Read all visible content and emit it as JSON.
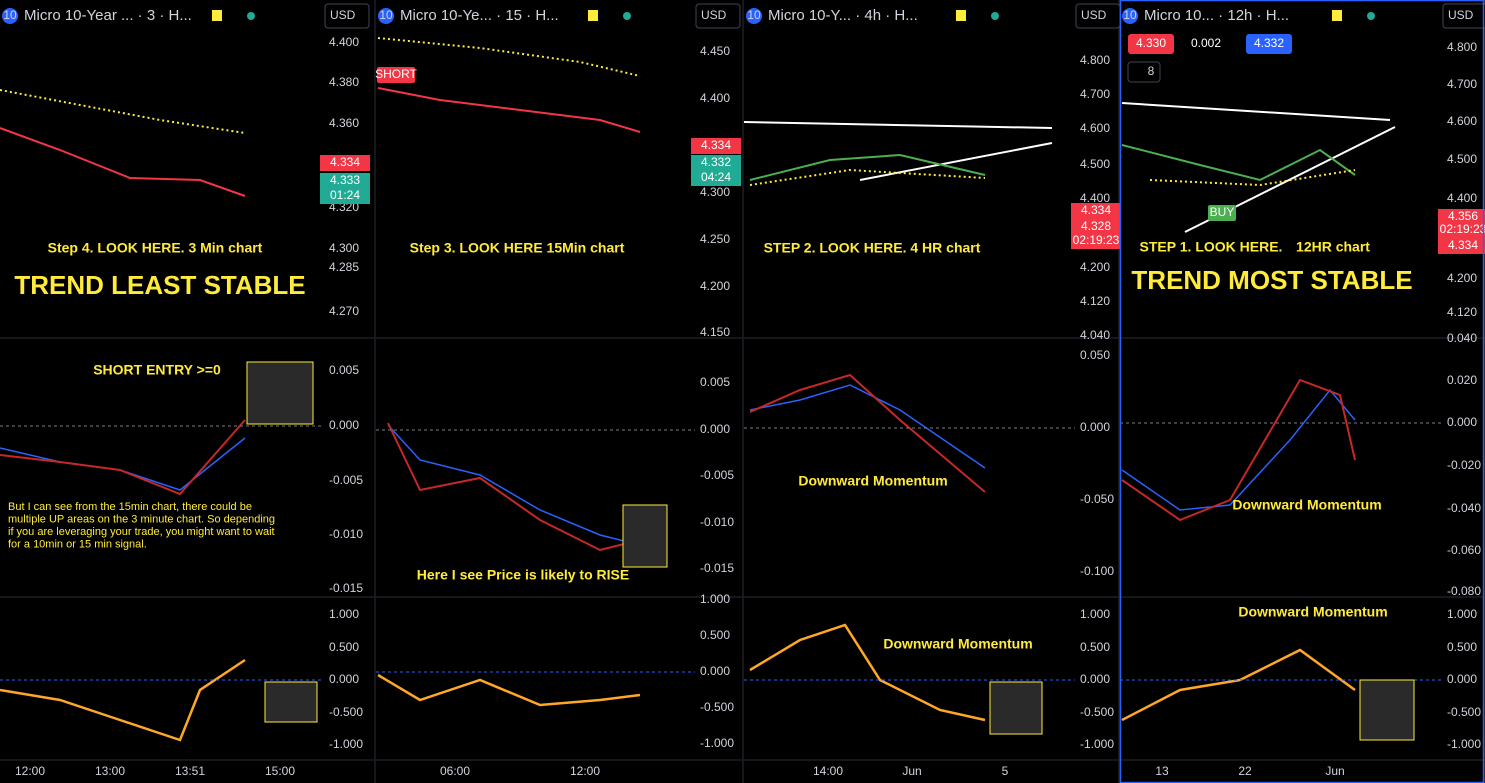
{
  "panels": [
    {
      "icon": "10",
      "title": "Micro 10-Year ... · 3 · H...",
      "currency": "USD",
      "price_axis": [
        "4.400",
        "4.380",
        "4.360",
        "4.320",
        "4.300",
        "4.285",
        "4.270"
      ],
      "price_tags": [
        {
          "text": "4.334",
          "color": "#f23645"
        },
        {
          "text": "4.333",
          "color": "#22ab94"
        },
        {
          "text": "01:24",
          "color": "#22ab94"
        }
      ],
      "annotations": [
        "Step 4. LOOK HERE. 3 Min chart",
        "TREND LEAST STABLE",
        "SHORT ENTRY >=0"
      ],
      "note_lines": [
        "But I can see from the 15min chart, there could be",
        "multiple UP areas on the 3 minute chart. So depending",
        "if you are leveraging your trade, you might want to wait",
        "for a 10min or 15 min signal."
      ],
      "macd_axis": [
        "0.005",
        "0.000",
        "-0.005",
        "-0.010",
        "-0.015"
      ],
      "osc_axis": [
        "1.000",
        "0.500",
        "0.000",
        "-0.500",
        "-1.000"
      ],
      "time_axis": [
        "12:00",
        "13:00",
        "13:51",
        "15:00"
      ]
    },
    {
      "icon": "10",
      "title": "Micro 10-Ye... · 15 · H...",
      "currency": "USD",
      "price_axis": [
        "4.450",
        "4.400",
        "4.300",
        "4.250",
        "4.200",
        "4.150"
      ],
      "price_tags": [
        {
          "text": "4.334",
          "color": "#f23645"
        },
        {
          "text": "4.332",
          "color": "#22ab94"
        },
        {
          "text": "04:24",
          "color": "#22ab94"
        }
      ],
      "signals": [
        {
          "text": "SHORT",
          "color": "#f23645"
        }
      ],
      "annotations": [
        "Step 3. LOOK HERE 15Min chart",
        "Here I see Price is likely to RISE"
      ],
      "macd_axis": [
        "0.005",
        "0.000",
        "-0.005",
        "-0.010",
        "-0.015"
      ],
      "osc_axis": [
        "1.000",
        "0.500",
        "0.000",
        "-0.500",
        "-1.000"
      ],
      "time_axis": [
        "06:00",
        "12:00"
      ]
    },
    {
      "icon": "10",
      "title": "Micro 10-Y... · 4h · H...",
      "currency": "USD",
      "price_axis": [
        "4.800",
        "4.700",
        "4.600",
        "4.500",
        "4.400",
        "4.200",
        "4.120",
        "4.040"
      ],
      "price_tags": [
        {
          "text": "4.334",
          "color": "#f23645"
        },
        {
          "text": "4.328",
          "color": "#f23645"
        },
        {
          "text": "02:19:23",
          "color": "#f23645"
        }
      ],
      "annotations": [
        "STEP 2. LOOK HERE. 4 HR chart",
        "Downward Momentum",
        "Downward Momentum"
      ],
      "macd_axis": [
        "0.050",
        "0.000",
        "-0.050",
        "-0.100"
      ],
      "osc_axis": [
        "1.000",
        "0.500",
        "0.000",
        "-0.500",
        "-1.000"
      ],
      "time_axis": [
        "14:00",
        "Jun",
        "5"
      ]
    },
    {
      "icon": "10",
      "title": "Micro 10... · 12h · H...",
      "currency": "USD",
      "quote": [
        {
          "text": "4.330",
          "color": "#f23645"
        },
        {
          "text": "0.002",
          "color": "#000000"
        },
        {
          "text": "4.332",
          "color": "#2962ff"
        }
      ],
      "indicator_count": "8",
      "price_axis": [
        "4.800",
        "4.700",
        "4.600",
        "4.500",
        "4.400",
        "4.200",
        "4.120"
      ],
      "price_tags": [
        {
          "text": "4.356",
          "color": "#f23645"
        },
        {
          "text": "02:19:23",
          "color": "#f23645"
        },
        {
          "text": "4.334",
          "color": "#f23645"
        }
      ],
      "signals": [
        {
          "text": "BUY",
          "color": "#4caf50"
        }
      ],
      "annotations": [
        "STEP 1. LOOK HERE.",
        "12HR chart",
        "TREND MOST STABLE",
        "Downward Momentum",
        "Downward Momentum"
      ],
      "macd_axis": [
        "0.040",
        "0.020",
        "0.000",
        "-0.020",
        "-0.040",
        "-0.060",
        "-0.080"
      ],
      "osc_axis": [
        "1.000",
        "0.500",
        "0.000",
        "-0.500",
        "-1.000"
      ],
      "time_axis": [
        "13",
        "22",
        "Jun"
      ]
    }
  ]
}
